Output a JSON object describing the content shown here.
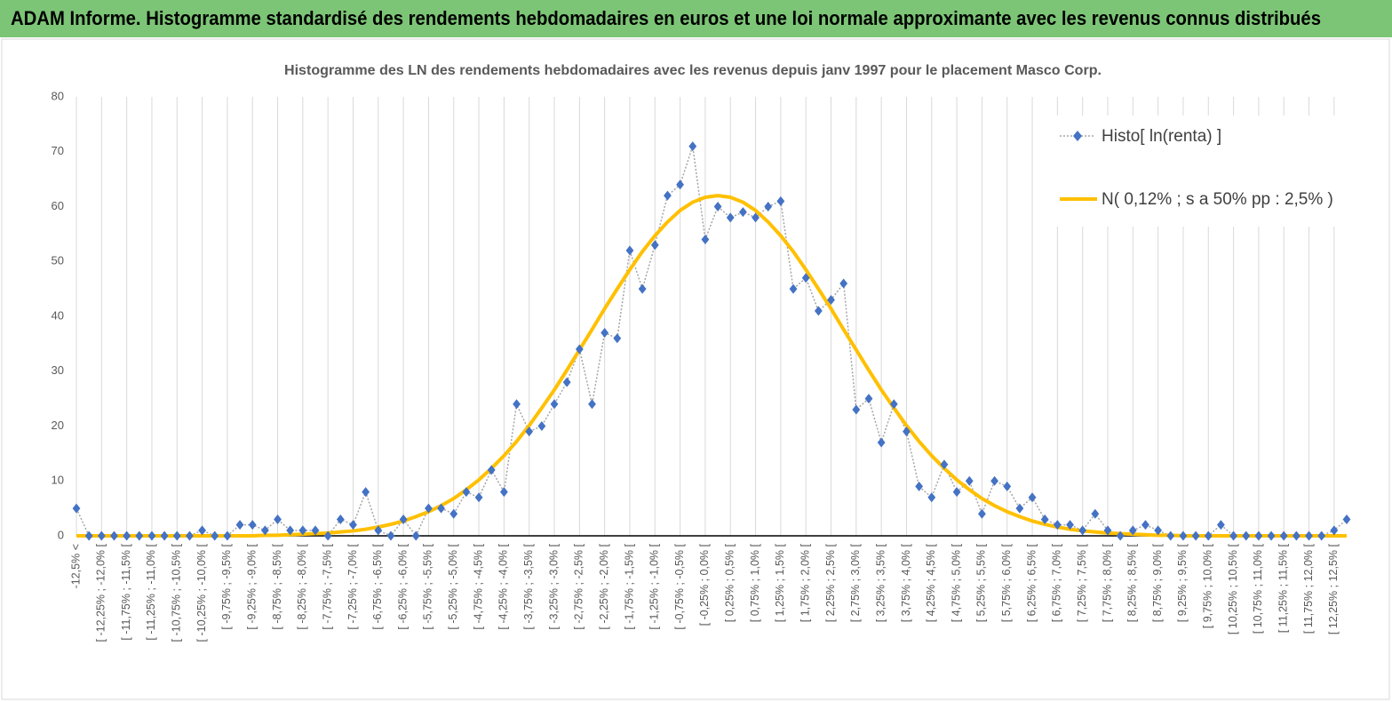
{
  "header": {
    "title": "ADAM Informe. Histogramme standardisé des rendements hebdomadaires en euros et une loi normale approximante avec les revenus connus distribués"
  },
  "chart_data": {
    "type": "line",
    "title": "Histogramme des LN des rendements hebdomadaires avec les revenus depuis janv 1997 pour le placement Masco Corp.",
    "categories": [
      "-12,5% <",
      null,
      "[ -12,25% ; -12,0% [",
      null,
      "[ -11,75% ; -11,5% [",
      null,
      "[ -11,25% ; -11,0% [",
      null,
      "[ -10,75% ; -10,5% [",
      null,
      "[ -10,25% ; -10,0% [",
      null,
      "[ -9,75% ; -9,5% [",
      null,
      "[ -9,25% ; -9,0% [",
      null,
      "[ -8,75% ; -8,5% [",
      null,
      "[ -8,25% ; -8,0% [",
      null,
      "[ -7,75% ; -7,5% [",
      null,
      "[ -7,25% ; -7,0% [",
      null,
      "[ -6,75% ; -6,5% [",
      null,
      "[ -6,25% ; -6,0% [",
      null,
      "[ -5,75% ; -5,5% [",
      null,
      "[ -5,25% ; -5,0% [",
      null,
      "[ -4,75% ; -4,5% [",
      null,
      "[ -4,25% ; -4,0% [",
      null,
      "[ -3,75% ; -3,5% [",
      null,
      "[ -3,25% ; -3,0% [",
      null,
      "[ -2,75% ; -2,5% [",
      null,
      "[ -2,25% ; -2,0% [",
      null,
      "[ -1,75% ; -1,5% [",
      null,
      "[ -1,25% ; -1,0% [",
      null,
      "[ -0,75% ; -0,5% [",
      null,
      "[ -0,25% ; 0,0% [",
      null,
      "[ 0,25% ; 0,5% [",
      null,
      "[ 0,75% ; 1,0% [",
      null,
      "[ 1,25% ; 1,5% [",
      null,
      "[ 1,75% ; 2,0% [",
      null,
      "[ 2,25% ; 2,5% [",
      null,
      "[ 2,75% ; 3,0% [",
      null,
      "[ 3,25% ; 3,5% [",
      null,
      "[ 3,75% ; 4,0% [",
      null,
      "[ 4,25% ; 4,5% [",
      null,
      "[ 4,75% ; 5,0% [",
      null,
      "[ 5,25% ; 5,5% [",
      null,
      "[ 5,75% ; 6,0% [",
      null,
      "[ 6,25% ; 6,5% [",
      null,
      "[ 6,75% ; 7,0% [",
      null,
      "[ 7,25% ; 7,5% [",
      null,
      "[ 7,75% ; 8,0% [",
      null,
      "[ 8,25% ; 8,5% [",
      null,
      "[ 8,75% ; 9,0% [",
      null,
      "[ 9,25% ; 9,5% [",
      null,
      "[ 9,75% ; 10,0% [",
      null,
      "[ 10,25% ; 10,5% [",
      null,
      "[ 10,75% ; 11,0% [",
      null,
      "[ 11,25% ; 11,5% [",
      null,
      "[ 11,75% ; 12,0% [",
      null,
      "[ 12,25% ; 12,5% [",
      null
    ],
    "series": [
      {
        "name": "Histo[ ln(renta) ]",
        "color": "#4472c4",
        "line_color": "#a5a5a5",
        "values": [
          5,
          0,
          0,
          0,
          0,
          0,
          0,
          0,
          0,
          0,
          1,
          0,
          0,
          2,
          2,
          1,
          3,
          1,
          1,
          1,
          0,
          3,
          2,
          8,
          1,
          0,
          3,
          0,
          5,
          5,
          4,
          8,
          7,
          12,
          8,
          24,
          19,
          20,
          24,
          28,
          34,
          24,
          37,
          36,
          52,
          45,
          53,
          62,
          64,
          71,
          54,
          60,
          58,
          59,
          58,
          60,
          61,
          45,
          47,
          41,
          43,
          46,
          23,
          25,
          17,
          24,
          19,
          9,
          7,
          13,
          8,
          10,
          4,
          10,
          9,
          5,
          7,
          3,
          2,
          2,
          1,
          4,
          1,
          0,
          1,
          2,
          1,
          0,
          0,
          0,
          0,
          2,
          0,
          0,
          0,
          0,
          0,
          0,
          0,
          0,
          1,
          3
        ]
      },
      {
        "name": "N( 0,12% ; s a 50% pp : 2,5% )",
        "color": "#ffc000",
        "values": [
          0,
          0,
          0,
          0,
          0,
          0,
          0,
          0,
          0,
          0,
          0,
          0,
          0,
          0,
          0,
          0.1,
          0.1,
          0.2,
          0.3,
          0.4,
          0.5,
          0.7,
          0.9,
          1.2,
          1.6,
          2.1,
          2.7,
          3.5,
          4.4,
          5.5,
          6.8,
          8.4,
          10.2,
          12.3,
          14.6,
          17.2,
          20.1,
          23.3,
          26.6,
          30.2,
          33.9,
          37.6,
          41.4,
          45.0,
          48.5,
          51.8,
          54.7,
          57.2,
          59.3,
          60.8,
          61.7,
          62,
          61.7,
          60.8,
          59.3,
          57.2,
          54.7,
          51.8,
          48.5,
          45.0,
          41.4,
          37.6,
          33.9,
          30.2,
          26.6,
          23.3,
          20.1,
          17.2,
          14.6,
          12.3,
          10.2,
          8.4,
          6.8,
          5.5,
          4.4,
          3.5,
          2.7,
          2.1,
          1.6,
          1.2,
          0.9,
          0.7,
          0.5,
          0.4,
          0.3,
          0.2,
          0.1,
          0.1,
          0,
          0,
          0,
          0,
          0,
          0,
          0,
          0,
          0,
          0,
          0,
          0,
          0,
          0
        ]
      }
    ],
    "ylim": [
      0,
      80
    ],
    "yticks": [
      0,
      10,
      20,
      30,
      40,
      50,
      60,
      70,
      80
    ],
    "xgrid": true,
    "legend": "top-right"
  }
}
